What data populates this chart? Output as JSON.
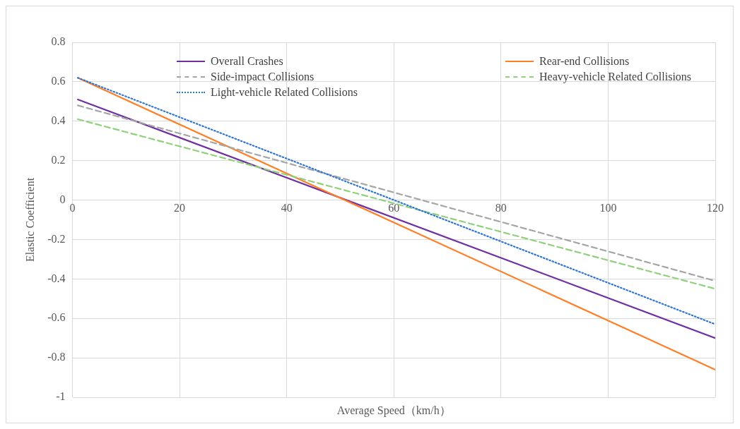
{
  "chart_data": {
    "type": "line",
    "xlabel": "Average Speed（km/h）",
    "ylabel": "Elastic Coefficient",
    "xlim": [
      0,
      120
    ],
    "xticks": [
      0,
      20,
      40,
      60,
      80,
      100,
      120
    ],
    "ylim": [
      -1,
      0.8
    ],
    "yticks": [
      -1,
      -0.8,
      -0.6,
      -0.4,
      -0.2,
      0,
      0.2,
      0.4,
      0.6,
      0.8
    ],
    "grid": true,
    "legend": "top",
    "marker": "none",
    "x": [
      1,
      120
    ],
    "series": [
      {
        "name": "Overall Crashes",
        "color": "#7030a0",
        "values": [
          0.51,
          -0.7
        ],
        "line_style": "solid"
      },
      {
        "name": "Rear-end Collisions",
        "color": "#ff7f27",
        "values": [
          0.62,
          -0.86
        ],
        "line_style": "solid"
      },
      {
        "name": "Side-impact Collisions",
        "color": "#a5a5a5",
        "values": [
          0.48,
          -0.41
        ],
        "line_style": "dashed"
      },
      {
        "name": "Heavy-vehicle Related Collisions",
        "color": "#8fd17a",
        "values": [
          0.41,
          -0.45
        ],
        "line_style": "dashed"
      },
      {
        "name": "Light-vehicle Related Collisions",
        "color": "#2e75d6",
        "values": [
          0.62,
          -0.63
        ],
        "line_style": "dotted"
      }
    ]
  }
}
